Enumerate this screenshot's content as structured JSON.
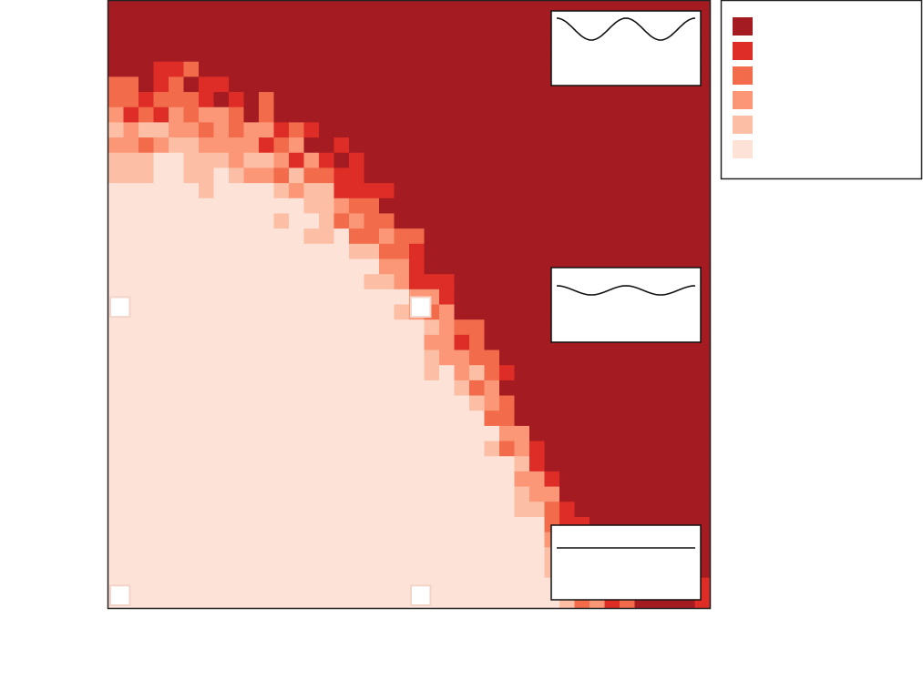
{
  "chart_data": {
    "type": "heatmap",
    "title": "",
    "xlabel": "",
    "ylabel": "",
    "grid": false,
    "legend_placement": "right-top",
    "colors": [
      "#fde2d8",
      "#fcbfa5",
      "#fb9777",
      "#f26b4b",
      "#de2d26",
      "#a51b22"
    ],
    "legend_entries": [
      {
        "label": "",
        "color": "#a51b22"
      },
      {
        "label": "",
        "color": "#de2d26"
      },
      {
        "label": "",
        "color": "#f26b4b"
      },
      {
        "label": "",
        "color": "#fb9777"
      },
      {
        "label": "",
        "color": "#fcbfa5"
      },
      {
        "label": "",
        "color": "#fde2d8"
      }
    ],
    "grid_size": 40,
    "boundary_rows": [
      6,
      6,
      6,
      6,
      6,
      6,
      7,
      7,
      7,
      8,
      8,
      9,
      9,
      10,
      10,
      11,
      12,
      13,
      14,
      15,
      17,
      19,
      20,
      21,
      22,
      24,
      26,
      28,
      30,
      32,
      34,
      36,
      37,
      38,
      39,
      40,
      40,
      40,
      40,
      40
    ],
    "x_ticks": [
      "",
      "",
      ""
    ],
    "y_ticks": [
      "",
      "",
      ""
    ],
    "insets": [
      {
        "curve": "high-amplitude-wave"
      },
      {
        "curve": "low-amplitude-wave"
      },
      {
        "curve": "flat-line"
      }
    ],
    "markers": [
      {
        "col": 0,
        "row": 20
      },
      {
        "col": 20,
        "row": 20
      },
      {
        "col": 0,
        "row": 39
      },
      {
        "col": 20,
        "row": 39
      }
    ]
  }
}
